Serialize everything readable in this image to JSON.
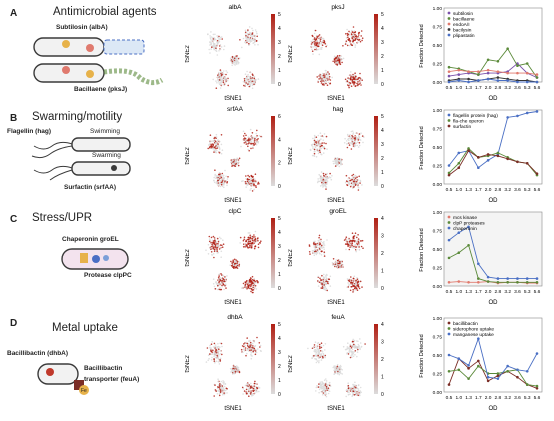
{
  "colors": {
    "low": "#dcdcdc",
    "high": "#b01f14",
    "cell": "#3a3a3a",
    "capsule": "#e7b24a"
  },
  "panels": [
    {
      "letter": "A",
      "title": "Antimicrobial agents",
      "labels": [
        "Subtilosin (albA)",
        "Bacillaene (pksJ)"
      ],
      "tsne": [
        {
          "gene": "albA",
          "scale_max": 5,
          "ticks": [
            "0",
            "1",
            "2",
            "3",
            "4",
            "5"
          ]
        },
        {
          "gene": "pksJ",
          "scale_max": 5,
          "ticks": [
            "0",
            "1",
            "2",
            "3",
            "4",
            "5"
          ]
        }
      ],
      "tsne_xlabel": "tSNE1",
      "tsne_ylabel": "tSNE2"
    },
    {
      "letter": "B",
      "title": "Swarming/motility",
      "labels": [
        "Flagellin (hag)",
        "Swimming",
        "Swarming",
        "Surfactin (srfAA)"
      ],
      "tsne": [
        {
          "gene": "srfAA",
          "scale_max": 6,
          "ticks": [
            "0",
            "2",
            "4",
            "6"
          ]
        },
        {
          "gene": "hag",
          "scale_max": 5,
          "ticks": [
            "0",
            "1",
            "2",
            "3",
            "4",
            "5"
          ]
        }
      ],
      "tsne_xlabel": "tSNE1",
      "tsne_ylabel": "tSNE2"
    },
    {
      "letter": "C",
      "title": "Stress/UPR",
      "labels": [
        "Chaperonin groEL",
        "Protease clpPC"
      ],
      "tsne": [
        {
          "gene": "clpC",
          "scale_max": 5,
          "ticks": [
            "0",
            "1",
            "2",
            "3",
            "4",
            "5"
          ]
        },
        {
          "gene": "groEL",
          "scale_max": 4,
          "ticks": [
            "0",
            "1",
            "2",
            "3",
            "4"
          ]
        }
      ],
      "tsne_xlabel": "tSNE1",
      "tsne_ylabel": "tSNE2"
    },
    {
      "letter": "D",
      "title": "Metal uptake",
      "labels": [
        "Bacillibactin (dhbA)",
        "Bacillibactin",
        "transporter (feuA)",
        "Fe"
      ],
      "tsne": [
        {
          "gene": "dhbA",
          "scale_max": 5,
          "ticks": [
            "0",
            "1",
            "2",
            "3",
            "4",
            "5"
          ]
        },
        {
          "gene": "feuA",
          "scale_max": 4,
          "ticks": [
            "0",
            "1",
            "2",
            "3",
            "4"
          ]
        }
      ],
      "tsne_xlabel": "tSNE1",
      "tsne_ylabel": "tSNE2"
    }
  ],
  "chart_data": [
    {
      "type": "line",
      "ylabel": "Fraction Detected",
      "xlabel": "OD",
      "x": [
        "0.5",
        "1.0",
        "1.3",
        "1.7",
        "2.0",
        "2.8",
        "3.2",
        "3.6",
        "5.3",
        "5.6"
      ],
      "ylim": [
        0,
        1.0
      ],
      "yticks": [
        "0.00",
        "0.25",
        "0.50",
        "0.75",
        "1.00"
      ],
      "series": [
        {
          "name": "subtilosin",
          "color": "#7b52ab",
          "values": [
            0.08,
            0.1,
            0.12,
            0.1,
            0.12,
            0.12,
            0.14,
            0.25,
            0.12,
            0.06
          ]
        },
        {
          "name": "bacillaene",
          "color": "#5b8a3a",
          "values": [
            0.2,
            0.18,
            0.14,
            0.1,
            0.3,
            0.28,
            0.45,
            0.22,
            0.25,
            0.06
          ]
        },
        {
          "name": "endoA/I",
          "color": "#e07a6e",
          "values": [
            0.14,
            0.16,
            0.14,
            0.14,
            0.16,
            0.14,
            0.12,
            0.12,
            0.12,
            0.1
          ]
        },
        {
          "name": "bacilysin",
          "color": "#333333",
          "values": [
            0.02,
            0.04,
            0.04,
            0.02,
            0.04,
            0.06,
            0.04,
            0.02,
            0.02,
            0.0
          ]
        },
        {
          "name": "plipastatin",
          "color": "#4a6fc4",
          "values": [
            0.0,
            0.02,
            0.0,
            0.02,
            0.04,
            0.02,
            0.02,
            0.0,
            0.0,
            0.0
          ]
        }
      ]
    },
    {
      "type": "line",
      "ylabel": "Fraction Detected",
      "xlabel": "OD",
      "x": [
        "0.5",
        "1.0",
        "1.3",
        "1.7",
        "2.0",
        "2.8",
        "3.2",
        "3.6",
        "5.3",
        "5.6"
      ],
      "ylim": [
        0,
        1.0
      ],
      "yticks": [
        "0.00",
        "0.25",
        "0.50",
        "0.75",
        "1.00"
      ],
      "series": [
        {
          "name": "flagellin protein (hag)",
          "color": "#4a6fc4",
          "values": [
            0.25,
            0.42,
            0.45,
            0.22,
            0.32,
            0.4,
            0.9,
            0.92,
            0.96,
            0.98
          ]
        },
        {
          "name": "fla-che operon",
          "color": "#5b8a3a",
          "values": [
            0.15,
            0.28,
            0.48,
            0.36,
            0.38,
            0.42,
            0.36,
            0.3,
            0.28,
            0.12
          ]
        },
        {
          "name": "surfactin",
          "color": "#7b2d26",
          "values": [
            0.12,
            0.22,
            0.45,
            0.36,
            0.4,
            0.38,
            0.34,
            0.3,
            0.28,
            0.14
          ]
        }
      ]
    },
    {
      "type": "line",
      "ylabel": "Fraction Detected",
      "xlabel": "OD",
      "x": [
        "0.5",
        "1.0",
        "1.3",
        "1.7",
        "2.0",
        "2.8",
        "3.2",
        "3.6",
        "5.3",
        "5.6"
      ],
      "ylim": [
        0,
        1.0
      ],
      "yticks": [
        "0.00",
        "0.25",
        "0.50",
        "0.75",
        "1.00"
      ],
      "series": [
        {
          "name": "mcs kinase",
          "color": "#e07a6e",
          "values": [
            0.05,
            0.06,
            0.05,
            0.05,
            0.06,
            0.04,
            0.05,
            0.05,
            0.04,
            0.04
          ]
        },
        {
          "name": "clpP proteases",
          "color": "#5b8a3a",
          "values": [
            0.38,
            0.45,
            0.55,
            0.1,
            0.06,
            0.05,
            0.05,
            0.05,
            0.05,
            0.05
          ]
        },
        {
          "name": "chaperonin",
          "color": "#4a6fc4",
          "values": [
            0.62,
            0.72,
            0.8,
            0.3,
            0.12,
            0.1,
            0.1,
            0.1,
            0.1,
            0.1
          ]
        }
      ]
    },
    {
      "type": "line",
      "ylabel": "Fraction Detected",
      "xlabel": "OD",
      "x": [
        "0.5",
        "1.0",
        "1.3",
        "1.7",
        "2.0",
        "2.8",
        "3.2",
        "3.6",
        "5.3",
        "5.6"
      ],
      "ylim": [
        0,
        1.0
      ],
      "yticks": [
        "0.00",
        "0.25",
        "0.50",
        "0.75",
        "1.00"
      ],
      "series": [
        {
          "name": "bacillibactin",
          "color": "#7b2d26",
          "values": [
            0.1,
            0.45,
            0.32,
            0.42,
            0.15,
            0.22,
            0.28,
            0.2,
            0.1,
            0.05
          ]
        },
        {
          "name": "siderophore uptake",
          "color": "#5b8a3a",
          "values": [
            0.28,
            0.3,
            0.18,
            0.35,
            0.25,
            0.25,
            0.28,
            0.3,
            0.1,
            0.08
          ]
        },
        {
          "name": "manganese uptake",
          "color": "#4a6fc4",
          "values": [
            0.5,
            0.45,
            0.36,
            0.72,
            0.2,
            0.18,
            0.35,
            0.3,
            0.28,
            0.52
          ]
        }
      ]
    }
  ]
}
